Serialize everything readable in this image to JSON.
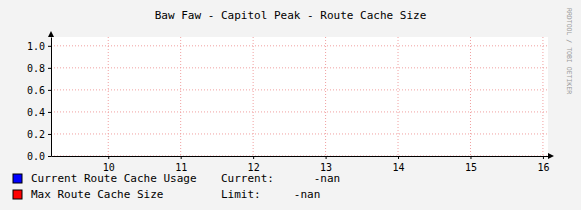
{
  "chart_data": {
    "type": "line",
    "title": "Baw Faw - Capitol Peak - Route Cache Size",
    "x": [
      10,
      11,
      12,
      13,
      14,
      15,
      16
    ],
    "series": [
      {
        "name": "Current Route Cache Usage",
        "color": "#0000ff",
        "summary": "Current:      -nan",
        "values": [
          null,
          null,
          null,
          null,
          null,
          null,
          null
        ]
      },
      {
        "name": "Max Route Cache Size",
        "color": "#ff0000",
        "summary": "Limit:     -nan",
        "values": [
          null,
          null,
          null,
          null,
          null,
          null,
          null
        ]
      }
    ],
    "xlim": [
      9.21,
      16.07
    ],
    "xticks": [
      10,
      11,
      12,
      13,
      14,
      15,
      16
    ],
    "ylim": [
      0,
      1.08
    ],
    "yticks": [
      {
        "value": 0,
        "label": "0.0"
      },
      0.2,
      0.4,
      0.6,
      0.8,
      {
        "value": 1,
        "label": "1.0"
      }
    ],
    "grid": true,
    "legend": "bottom",
    "annotations": [
      "RRDTOOL / TOBI OETIKER"
    ]
  }
}
